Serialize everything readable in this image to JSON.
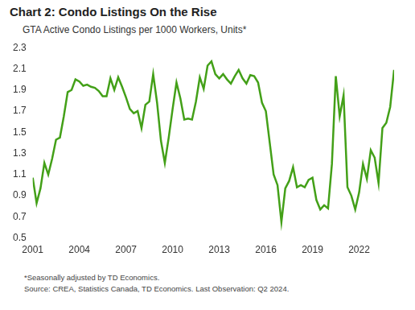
{
  "chart_data": {
    "type": "line",
    "title": "Chart 2: Condo Listings On the Rise",
    "subtitle": "GTA Active Condo Listings per 1000 Workers, Units*",
    "notes": [
      "*Seasonally adjusted by TD Economics.",
      "Source: CREA, Statistics Canada, TD Economics. Last Observation: Q2 2024."
    ],
    "categories": [
      "2001",
      null,
      null,
      null,
      null,
      null,
      null,
      null,
      null,
      null,
      null,
      null,
      "2004",
      null,
      null,
      null,
      null,
      null,
      null,
      null,
      null,
      null,
      null,
      null,
      "2007",
      null,
      null,
      null,
      null,
      null,
      null,
      null,
      null,
      null,
      null,
      null,
      "2010",
      null,
      null,
      null,
      null,
      null,
      null,
      null,
      null,
      null,
      null,
      null,
      "2013",
      null,
      null,
      null,
      null,
      null,
      null,
      null,
      null,
      null,
      null,
      null,
      "2016",
      null,
      null,
      null,
      null,
      null,
      null,
      null,
      null,
      null,
      null,
      null,
      "2019",
      null,
      null,
      null,
      null,
      null,
      null,
      null,
      null,
      null,
      null,
      null,
      "2022",
      null,
      null,
      null,
      null,
      null,
      null,
      null,
      null,
      null
    ],
    "values": [
      1.07,
      0.83,
      0.97,
      1.21,
      1.1,
      1.25,
      1.43,
      1.45,
      1.65,
      1.88,
      1.9,
      2.0,
      1.98,
      1.94,
      1.95,
      1.93,
      1.92,
      1.89,
      1.84,
      1.84,
      2.01,
      1.9,
      2.02,
      1.93,
      1.83,
      1.72,
      1.68,
      1.7,
      1.54,
      1.76,
      1.79,
      2.05,
      1.78,
      1.42,
      1.21,
      1.45,
      1.72,
      1.97,
      1.82,
      1.62,
      1.63,
      1.62,
      1.79,
      2.02,
      1.91,
      2.13,
      2.17,
      2.05,
      2.01,
      2.05,
      2.0,
      1.96,
      2.03,
      2.09,
      2.01,
      1.96,
      2.04,
      2.03,
      1.97,
      1.78,
      1.7,
      1.4,
      1.1,
      1.0,
      0.65,
      0.97,
      1.04,
      1.17,
      0.98,
      1.0,
      0.98,
      1.05,
      1.07,
      0.86,
      0.77,
      0.81,
      0.78,
      1.2,
      2.03,
      1.65,
      1.85,
      0.98,
      0.9,
      0.77,
      0.93,
      1.2,
      1.06,
      1.33,
      1.26,
      1.02,
      1.54,
      1.59,
      1.74,
      2.09
    ],
    "color": "#43a018",
    "ylim": [
      0.5,
      2.3
    ],
    "yticks": [
      0.5,
      0.7,
      0.9,
      1.1,
      1.3,
      1.5,
      1.7,
      1.9,
      2.1,
      2.3
    ],
    "grid": false
  }
}
